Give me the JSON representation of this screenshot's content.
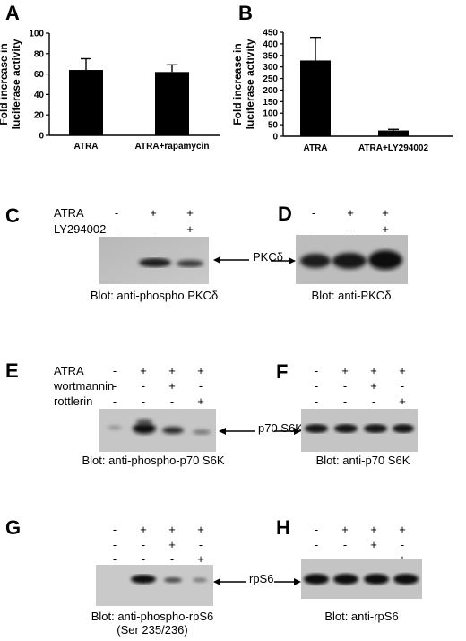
{
  "panels": {
    "A": "A",
    "B": "B",
    "C": "C",
    "D": "D",
    "E": "E",
    "F": "F",
    "G": "G",
    "H": "H"
  },
  "chart_data": [
    {
      "type": "bar",
      "panel": "A",
      "title": "",
      "xlabel": "",
      "ylabel": "Fold increase in luciferase activity",
      "ylabel_lines": [
        "Fold increase in",
        "luciferase activity"
      ],
      "categories": [
        "ATRA",
        "ATRA+rapamycin"
      ],
      "values": [
        64,
        62
      ],
      "errors": [
        11,
        7
      ],
      "ylim": [
        0,
        100
      ],
      "yticks": [
        0,
        20,
        40,
        60,
        80,
        100
      ],
      "grid": false
    },
    {
      "type": "bar",
      "panel": "B",
      "title": "",
      "xlabel": "",
      "ylabel": "Fold increase in luciferase activity",
      "ylabel_lines": [
        "Fold increase in",
        "luciferase activity"
      ],
      "categories": [
        "ATRA",
        "ATRA+LY294002"
      ],
      "values": [
        328,
        25
      ],
      "errors": [
        100,
        5
      ],
      "ylim": [
        0,
        450
      ],
      "yticks": [
        0,
        50,
        100,
        150,
        200,
        250,
        300,
        350,
        400,
        450
      ],
      "grid": false
    }
  ],
  "blotC": {
    "row1_label": "ATRA",
    "row2_label": "LY294002",
    "row1_signs": [
      "-",
      "+",
      "+"
    ],
    "row2_signs": [
      "-",
      "-",
      "+"
    ],
    "band_label": "PKCδ",
    "caption": "Blot: anti-phospho PKCδ"
  },
  "blotD": {
    "row1_signs": [
      "-",
      "+",
      "+"
    ],
    "row2_signs": [
      "-",
      "-",
      "+"
    ],
    "caption": "Blot: anti-PKCδ"
  },
  "blotE": {
    "row1_label": "ATRA",
    "row2_label": "wortmannin",
    "row3_label": "rottlerin",
    "row1_signs": [
      "-",
      "+",
      "+",
      "+"
    ],
    "row2_signs": [
      "-",
      "-",
      "+",
      "-"
    ],
    "row3_signs": [
      "-",
      "-",
      "-",
      "+"
    ],
    "band_label": "p70 S6K",
    "caption": "Blot: anti-phospho-p70 S6K"
  },
  "blotF": {
    "row1_signs": [
      "-",
      "+",
      "+",
      "+"
    ],
    "row2_signs": [
      "-",
      "-",
      "+",
      "-"
    ],
    "row3_signs": [
      "-",
      "-",
      "-",
      "+"
    ],
    "caption": "Blot: anti-p70 S6K"
  },
  "blotG": {
    "row1_signs": [
      "-",
      "+",
      "+",
      "+"
    ],
    "row2_signs": [
      "-",
      "-",
      "+",
      "-"
    ],
    "row3_signs": [
      "-",
      "-",
      "-",
      "+"
    ],
    "band_label": "rpS6",
    "caption_line1": "Blot: anti-phospho-rpS6",
    "caption_line2": "(Ser 235/236)"
  },
  "blotH": {
    "row1_signs": [
      "-",
      "+",
      "+",
      "+"
    ],
    "row2_signs": [
      "-",
      "-",
      "+",
      "-"
    ],
    "row3_signs": [
      "-",
      "-",
      "-",
      "+"
    ],
    "caption": "Blot: anti-rpS6"
  }
}
